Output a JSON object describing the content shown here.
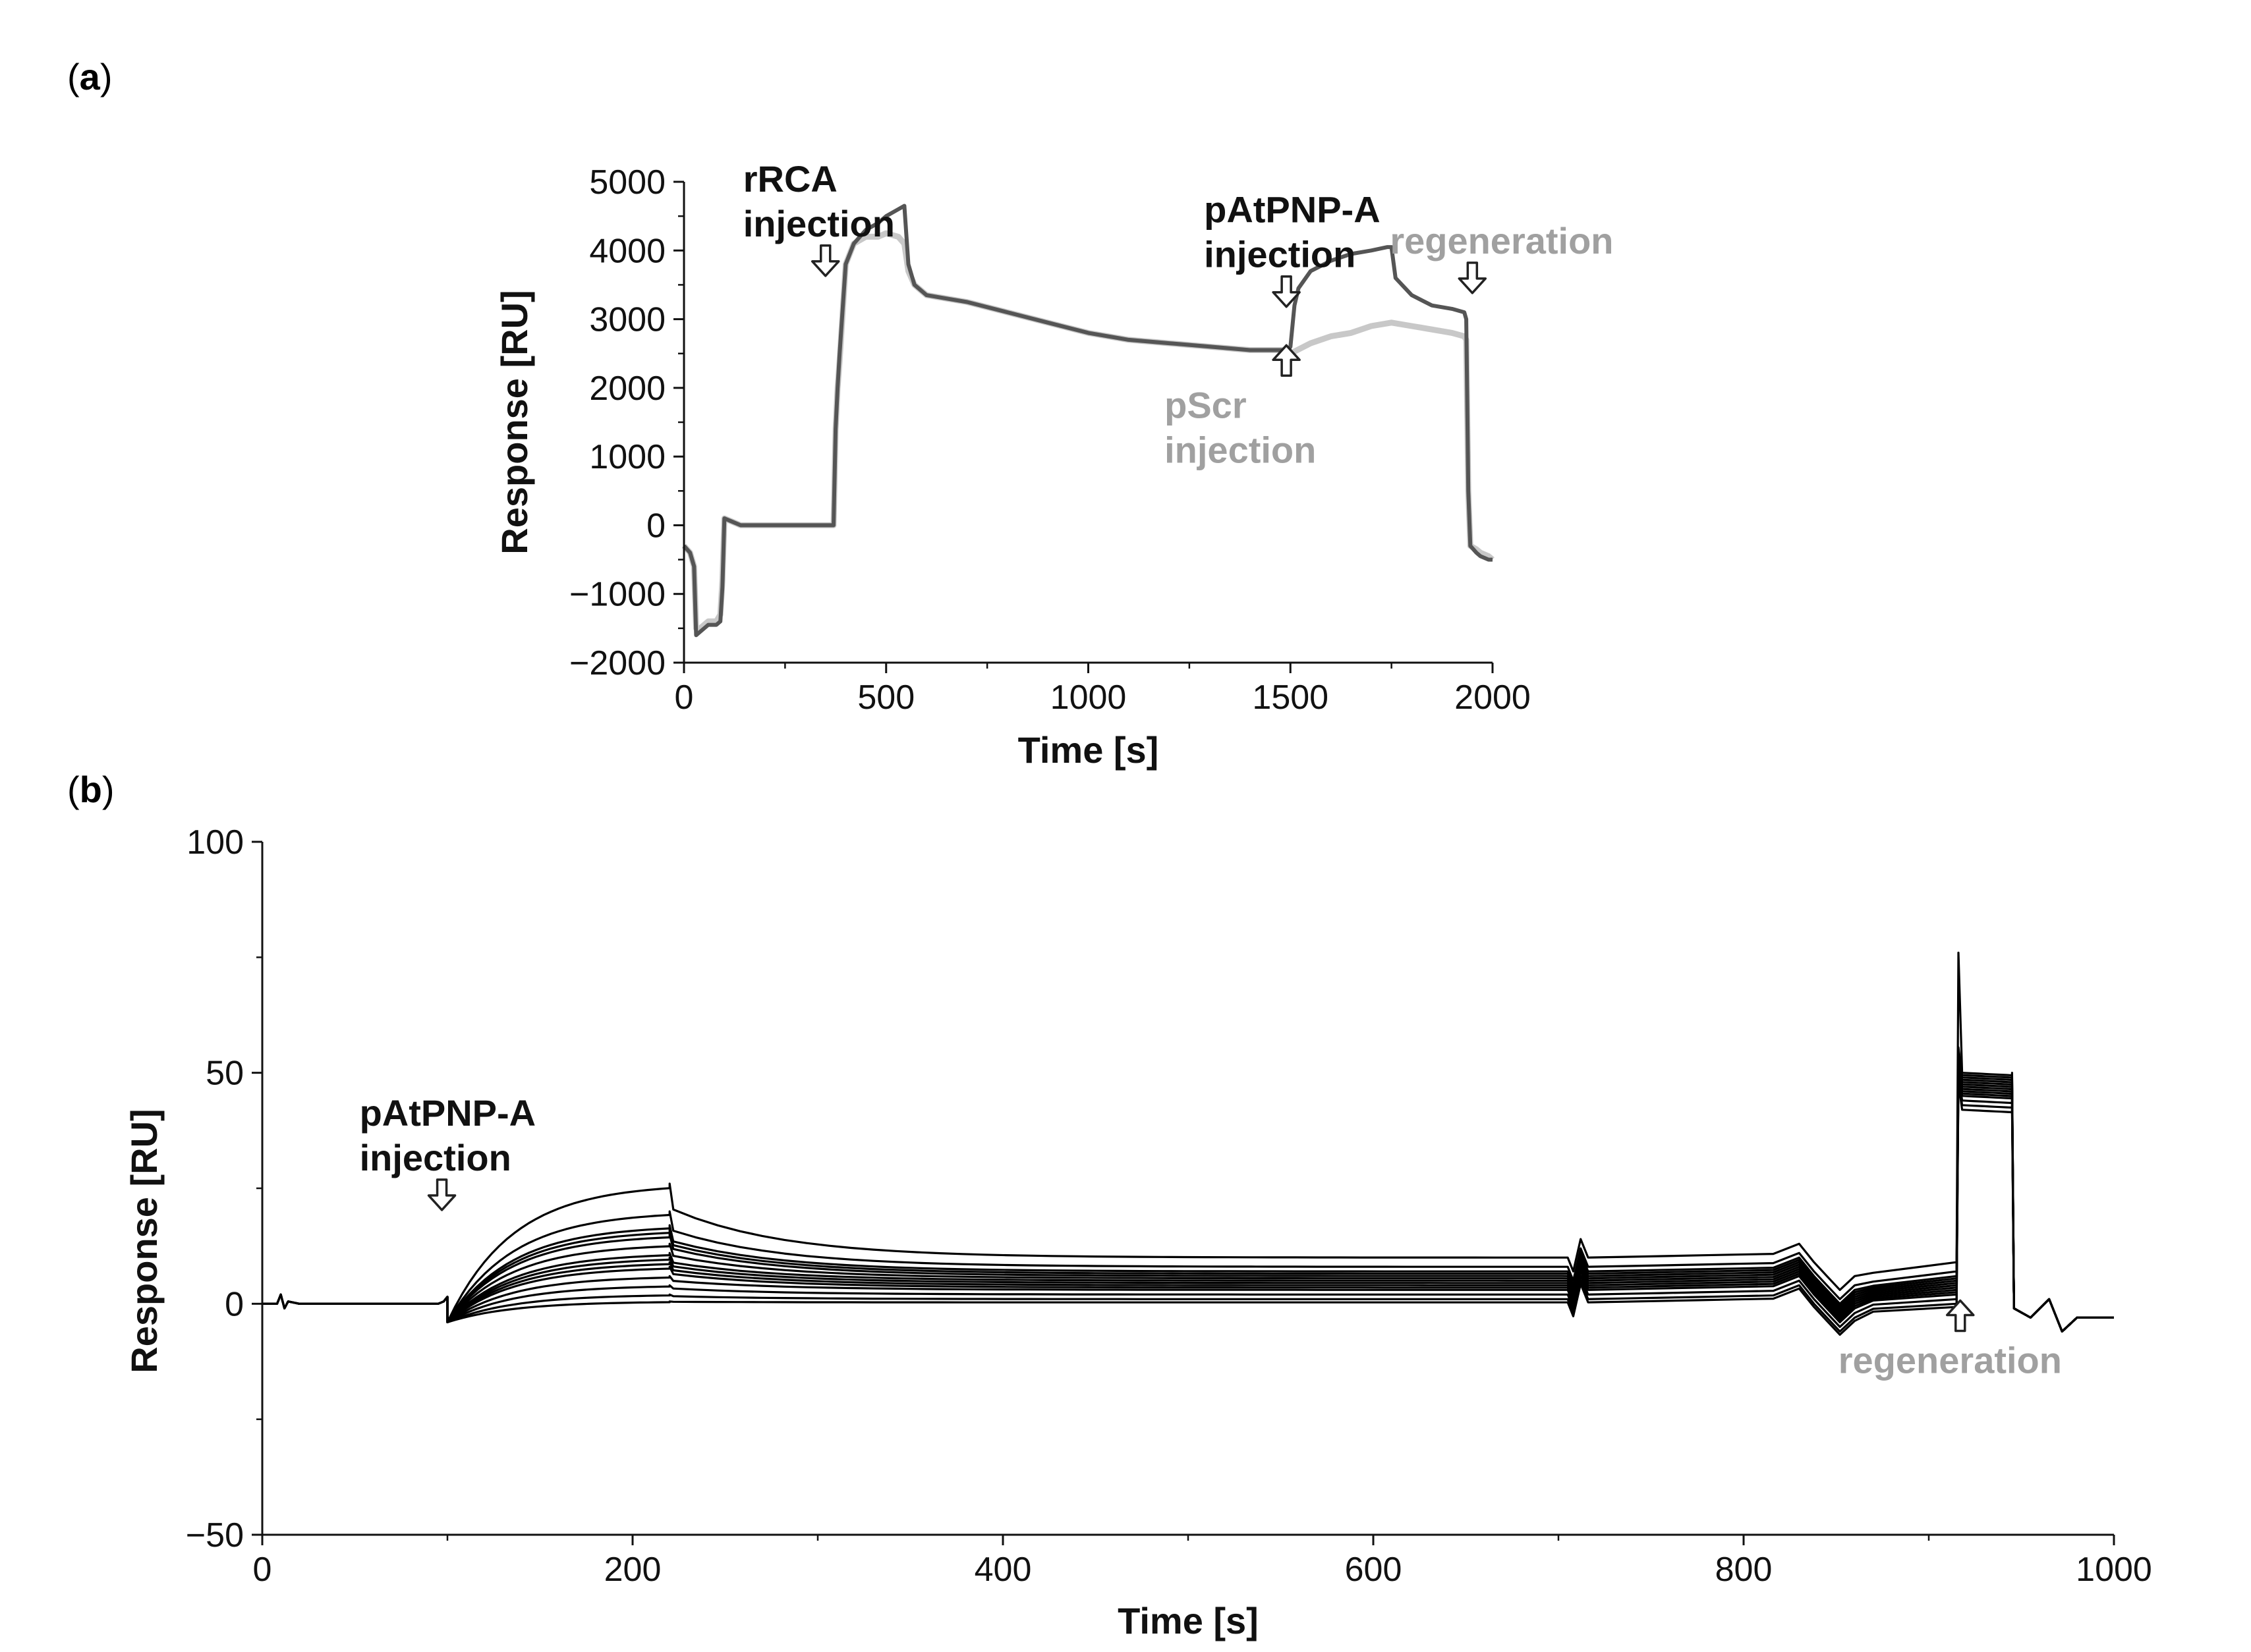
{
  "panel_a": {
    "label_letter": "a"
  },
  "panel_b": {
    "label_letter": "b"
  },
  "chart_data": [
    {
      "type": "line",
      "xlabel": "Time [s]",
      "ylabel": "Response [RU]",
      "xlim": [
        0,
        2000
      ],
      "ylim": [
        -2000,
        5000
      ],
      "xticks": [
        0,
        500,
        1000,
        1500,
        2000
      ],
      "xtick_labels": [
        "0",
        "500",
        "1000",
        "1500",
        "2000"
      ],
      "yticks": [
        -2000,
        -1000,
        0,
        1000,
        2000,
        3000,
        4000,
        5000
      ],
      "ytick_labels": [
        "−2000",
        "−1000",
        "0",
        "1000",
        "2000",
        "3000",
        "4000",
        "5000"
      ],
      "grid": false,
      "colors": {
        "dark": "#555555",
        "light": "#c8c8c8"
      },
      "series": [
        {
          "color": "#c8c8c8",
          "x": [
            0,
            15,
            25,
            30,
            40,
            60,
            80,
            90,
            95,
            100,
            120,
            140,
            200,
            300,
            350,
            370,
            375,
            380,
            385,
            400,
            420,
            450,
            480,
            500,
            530,
            545,
            555,
            570,
            600,
            650,
            700,
            800,
            900,
            1000,
            1100,
            1200,
            1300,
            1400,
            1480,
            1495,
            1500,
            1550,
            1600,
            1650,
            1700,
            1750,
            1800,
            1850,
            1900,
            1930,
            1935,
            1940,
            1945,
            1960,
            1970,
            1990,
            2000
          ],
          "y": [
            -300,
            -400,
            -600,
            -1500,
            -1500,
            -1400,
            -1400,
            -1300,
            -800,
            100,
            50,
            0,
            0,
            0,
            0,
            0,
            1400,
            2000,
            2400,
            3800,
            4100,
            4200,
            4200,
            4250,
            4200,
            4100,
            3700,
            3500,
            3350,
            3300,
            3250,
            3100,
            2950,
            2800,
            2700,
            2650,
            2600,
            2550,
            2550,
            2500,
            2500,
            2650,
            2750,
            2800,
            2900,
            2950,
            2900,
            2850,
            2800,
            2750,
            2700,
            500,
            -300,
            -350,
            -400,
            -450,
            -500
          ]
        },
        {
          "color": "#555555",
          "x": [
            0,
            15,
            25,
            30,
            40,
            60,
            80,
            90,
            95,
            100,
            120,
            140,
            200,
            300,
            350,
            370,
            375,
            380,
            385,
            400,
            420,
            450,
            480,
            500,
            530,
            545,
            555,
            570,
            600,
            650,
            700,
            800,
            900,
            1000,
            1100,
            1200,
            1300,
            1400,
            1480,
            1495,
            1500,
            1510,
            1520,
            1550,
            1600,
            1650,
            1700,
            1740,
            1750,
            1760,
            1800,
            1850,
            1900,
            1930,
            1935,
            1940,
            1945,
            1960,
            1970,
            1990,
            2000
          ],
          "y": [
            -300,
            -400,
            -600,
            -1600,
            -1550,
            -1450,
            -1450,
            -1400,
            -900,
            100,
            50,
            0,
            0,
            0,
            0,
            0,
            1400,
            2000,
            2500,
            3800,
            4100,
            4300,
            4400,
            4500,
            4600,
            4650,
            3800,
            3500,
            3350,
            3300,
            3250,
            3100,
            2950,
            2800,
            2700,
            2650,
            2600,
            2550,
            2550,
            2550,
            2600,
            3200,
            3450,
            3700,
            3850,
            3950,
            4000,
            4050,
            4050,
            3600,
            3350,
            3200,
            3150,
            3100,
            3000,
            500,
            -300,
            -400,
            -450,
            -500,
            -500
          ]
        }
      ],
      "annotations": [
        {
          "text": [
            "rRCA",
            "injection"
          ],
          "x": 350,
          "y": 4350,
          "color": "#111111"
        },
        {
          "text": [
            "pAtPNP-A",
            "injection"
          ],
          "x": 1490,
          "y": 3900,
          "color": "#111111"
        },
        {
          "text": [
            "regeneration"
          ],
          "x": 1950,
          "y": 4100,
          "color": "#a0a0a0"
        },
        {
          "text": [
            "pScr",
            "injection"
          ],
          "x": 1490,
          "y": 1900,
          "color": "#a0a0a0"
        }
      ]
    },
    {
      "type": "line",
      "xlabel": "Time [s]",
      "ylabel": "Response [RU]",
      "xlim": [
        0,
        1000
      ],
      "ylim": [
        -50,
        100
      ],
      "xticks": [
        0,
        200,
        400,
        600,
        800,
        1000
      ],
      "xtick_labels": [
        "0",
        "200",
        "400",
        "600",
        "800",
        "1000"
      ],
      "yticks": [
        -50,
        0,
        50,
        100
      ],
      "ytick_labels": [
        "−50",
        "0",
        "50",
        "100"
      ],
      "grid": false,
      "color": "#000000",
      "series_count": 14,
      "series_model": {
        "x_break_points": [
          0,
          8,
          10,
          12,
          14,
          20,
          95,
          98,
          100,
          102,
          220,
          222,
          705,
          708,
          712,
          716,
          825,
          830,
          838,
          845,
          852,
          860,
          870,
          915,
          916,
          918,
          945,
          946,
          955,
          965,
          972,
          980,
          1000
        ],
        "association_plateau_values": [
          0.5,
          2,
          4,
          6,
          8,
          9,
          10,
          11,
          13,
          15,
          16,
          17,
          20,
          26
        ],
        "dissociation_end_values": [
          0.3,
          1,
          2,
          3,
          3.5,
          4,
          4.5,
          5,
          5.5,
          6,
          6.5,
          7,
          8,
          10
        ],
        "regeneration_values": [
          42,
          43,
          44,
          45,
          45.5,
          46,
          46.5,
          47,
          47.5,
          48,
          48.5,
          49,
          49.5,
          50
        ],
        "regeneration_spike": 76
      },
      "annotations": [
        {
          "text": [
            "pAtPNP-A",
            "injection"
          ],
          "x": 97,
          "y": 31,
          "color": "#111111"
        },
        {
          "text": [
            "regeneration"
          ],
          "x": 917,
          "y": -10,
          "color": "#a0a0a0"
        }
      ]
    }
  ]
}
